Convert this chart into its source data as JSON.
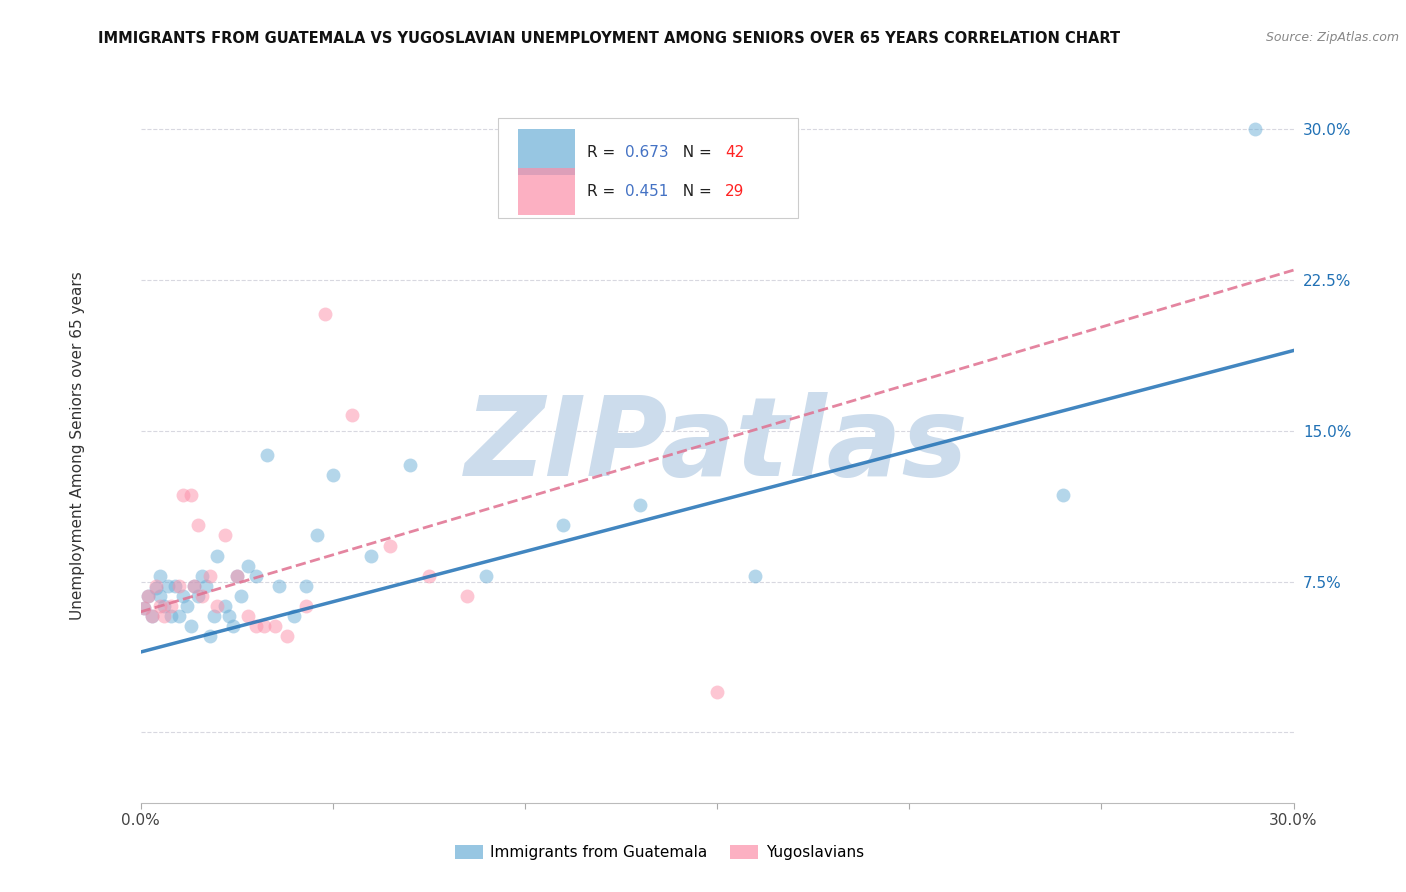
{
  "title": "IMMIGRANTS FROM GUATEMALA VS YUGOSLAVIAN UNEMPLOYMENT AMONG SENIORS OVER 65 YEARS CORRELATION CHART",
  "source": "Source: ZipAtlas.com",
  "ylabel": "Unemployment Among Seniors over 65 years",
  "xlim": [
    0.0,
    0.3
  ],
  "ylim": [
    -0.035,
    0.32
  ],
  "xticks": [
    0.0,
    0.05,
    0.1,
    0.15,
    0.2,
    0.25,
    0.3
  ],
  "xtick_labels": [
    "0.0%",
    "",
    "",
    "",
    "",
    "",
    "30.0%"
  ],
  "yticks": [
    0.0,
    0.075,
    0.15,
    0.225,
    0.3
  ],
  "ytick_labels": [
    "",
    "7.5%",
    "15.0%",
    "22.5%",
    "30.0%"
  ],
  "watermark": "ZIPatlas",
  "watermark_color": "#ccdcec",
  "blue_R": "0.673",
  "blue_N": "42",
  "pink_R": "0.451",
  "pink_N": "29",
  "blue_scatter_x": [
    0.001,
    0.002,
    0.003,
    0.004,
    0.005,
    0.005,
    0.006,
    0.007,
    0.008,
    0.009,
    0.01,
    0.011,
    0.012,
    0.013,
    0.014,
    0.015,
    0.016,
    0.017,
    0.018,
    0.019,
    0.02,
    0.022,
    0.023,
    0.024,
    0.025,
    0.026,
    0.028,
    0.03,
    0.033,
    0.036,
    0.04,
    0.043,
    0.046,
    0.05,
    0.06,
    0.07,
    0.09,
    0.11,
    0.13,
    0.16,
    0.24,
    0.29
  ],
  "blue_scatter_y": [
    0.062,
    0.068,
    0.058,
    0.072,
    0.068,
    0.078,
    0.063,
    0.073,
    0.058,
    0.073,
    0.058,
    0.068,
    0.063,
    0.053,
    0.073,
    0.068,
    0.078,
    0.073,
    0.048,
    0.058,
    0.088,
    0.063,
    0.058,
    0.053,
    0.078,
    0.068,
    0.083,
    0.078,
    0.138,
    0.073,
    0.058,
    0.073,
    0.098,
    0.128,
    0.088,
    0.133,
    0.078,
    0.103,
    0.113,
    0.078,
    0.118,
    0.3
  ],
  "pink_scatter_x": [
    0.001,
    0.002,
    0.003,
    0.004,
    0.005,
    0.006,
    0.008,
    0.01,
    0.011,
    0.013,
    0.014,
    0.015,
    0.016,
    0.018,
    0.02,
    0.022,
    0.025,
    0.028,
    0.03,
    0.032,
    0.035,
    0.038,
    0.043,
    0.048,
    0.055,
    0.065,
    0.075,
    0.085,
    0.15
  ],
  "pink_scatter_y": [
    0.062,
    0.068,
    0.058,
    0.073,
    0.063,
    0.058,
    0.063,
    0.073,
    0.118,
    0.118,
    0.073,
    0.103,
    0.068,
    0.078,
    0.063,
    0.098,
    0.078,
    0.058,
    0.053,
    0.053,
    0.053,
    0.048,
    0.063,
    0.208,
    0.158,
    0.093,
    0.078,
    0.068,
    0.02
  ],
  "blue_color": "#6baed6",
  "pink_color": "#fc8fa8",
  "blue_line_color": "#2171b5",
  "pink_line_color": "#e07090",
  "scatter_size": 100,
  "scatter_alpha": 0.5,
  "line_alpha": 0.85,
  "background_color": "#ffffff",
  "grid_color": "#d8d8e0",
  "legend_label1": "Immigrants from Guatemala",
  "legend_label2": "Yugoslavians"
}
